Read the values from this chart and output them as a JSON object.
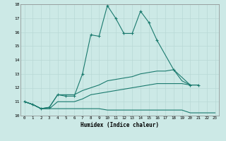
{
  "xlabel": "Humidex (Indice chaleur)",
  "ylabel": "",
  "background_color": "#cce9e6",
  "grid_color": "#b8d8d5",
  "line_color": "#1a7a6e",
  "xlim": [
    -0.5,
    23.5
  ],
  "ylim": [
    10.0,
    18.0
  ],
  "xticks": [
    0,
    1,
    2,
    3,
    4,
    5,
    6,
    7,
    8,
    9,
    10,
    11,
    12,
    13,
    14,
    15,
    16,
    17,
    18,
    19,
    20,
    21,
    22,
    23
  ],
  "yticks": [
    10,
    11,
    12,
    13,
    14,
    15,
    16,
    17,
    18
  ],
  "series": [
    {
      "x": [
        0,
        1,
        2,
        3,
        4,
        5,
        6,
        7,
        8,
        9,
        10,
        11,
        12,
        13,
        14,
        15,
        16,
        18,
        20,
        21
      ],
      "y": [
        11.0,
        10.8,
        10.5,
        10.6,
        11.5,
        11.4,
        11.4,
        13.0,
        15.8,
        15.7,
        17.9,
        17.0,
        15.9,
        15.9,
        17.5,
        16.7,
        15.4,
        13.3,
        12.2,
        12.2
      ],
      "marker": true
    },
    {
      "x": [
        0,
        1,
        2,
        3,
        4,
        5,
        6,
        7,
        8,
        9,
        10,
        11,
        12,
        13,
        14,
        15,
        16,
        17,
        18,
        19,
        20,
        21
      ],
      "y": [
        11.0,
        10.8,
        10.5,
        10.6,
        11.5,
        11.5,
        11.5,
        11.8,
        12.0,
        12.2,
        12.5,
        12.6,
        12.7,
        12.8,
        13.0,
        13.1,
        13.2,
        13.2,
        13.3,
        12.5,
        12.2,
        12.2
      ],
      "marker": false
    },
    {
      "x": [
        0,
        1,
        2,
        3,
        4,
        5,
        6,
        7,
        8,
        9,
        10,
        11,
        12,
        13,
        14,
        15,
        16,
        17,
        18,
        19,
        20,
        21
      ],
      "y": [
        11.0,
        10.8,
        10.5,
        10.5,
        11.0,
        11.0,
        11.0,
        11.2,
        11.5,
        11.6,
        11.7,
        11.8,
        11.9,
        12.0,
        12.1,
        12.2,
        12.3,
        12.3,
        12.3,
        12.3,
        12.2,
        12.2
      ],
      "marker": false
    },
    {
      "x": [
        0,
        1,
        2,
        3,
        4,
        5,
        6,
        7,
        8,
        9,
        10,
        11,
        12,
        13,
        14,
        15,
        16,
        17,
        18,
        19,
        20,
        21,
        23
      ],
      "y": [
        11.0,
        10.8,
        10.5,
        10.5,
        10.5,
        10.5,
        10.5,
        10.5,
        10.5,
        10.5,
        10.4,
        10.4,
        10.4,
        10.4,
        10.4,
        10.4,
        10.4,
        10.4,
        10.4,
        10.4,
        10.2,
        10.2,
        10.2
      ],
      "marker": false
    }
  ]
}
